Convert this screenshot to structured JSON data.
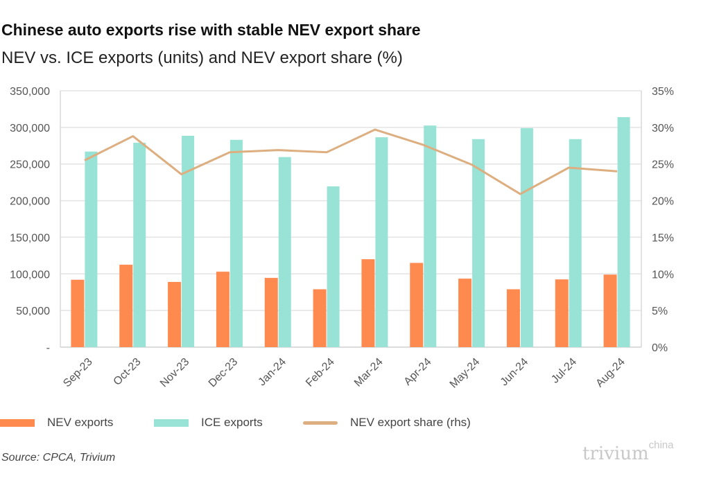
{
  "title": "Chinese auto exports rise with stable NEV export share",
  "subtitle": "NEV vs. ICE exports (units) and NEV export share (%)",
  "source": "Source: CPCA, Trivium",
  "logo": {
    "main": "trivium",
    "super": "china"
  },
  "chart_data": {
    "type": "bar",
    "categories": [
      "Sep-23",
      "Oct-23",
      "Nov-23",
      "Dec-23",
      "Jan-24",
      "Feb-24",
      "Mar-24",
      "Apr-24",
      "May-24",
      "Jun-24",
      "Jul-24",
      "Aug-24"
    ],
    "series": [
      {
        "name": "NEV exports",
        "type": "bar",
        "axis": "left",
        "color": "#FF8A50",
        "values": [
          92000,
          112500,
          89000,
          103000,
          94500,
          79000,
          120000,
          115000,
          93500,
          79000,
          92500,
          99000
        ]
      },
      {
        "name": "ICE exports",
        "type": "bar",
        "axis": "left",
        "color": "#98E2D6",
        "values": [
          267000,
          279000,
          288500,
          283000,
          259500,
          219500,
          286500,
          302500,
          284000,
          299000,
          284000,
          314000
        ]
      },
      {
        "name": "NEV export share (rhs)",
        "type": "line",
        "axis": "right",
        "color": "#DDAE7F",
        "values": [
          25.5,
          28.8,
          23.6,
          26.6,
          26.9,
          26.6,
          29.7,
          27.6,
          24.9,
          20.9,
          24.5,
          24.0
        ]
      }
    ],
    "y_left": {
      "range": [
        0,
        350000
      ],
      "ticks": [
        "-",
        "50,000",
        "100,000",
        "150,000",
        "200,000",
        "250,000",
        "300,000",
        "350,000"
      ]
    },
    "y_right": {
      "range": [
        0,
        35
      ],
      "ticks": [
        "0%",
        "5%",
        "10%",
        "15%",
        "20%",
        "25%",
        "30%",
        "35%"
      ]
    },
    "grid": true,
    "legend": "bottom"
  }
}
